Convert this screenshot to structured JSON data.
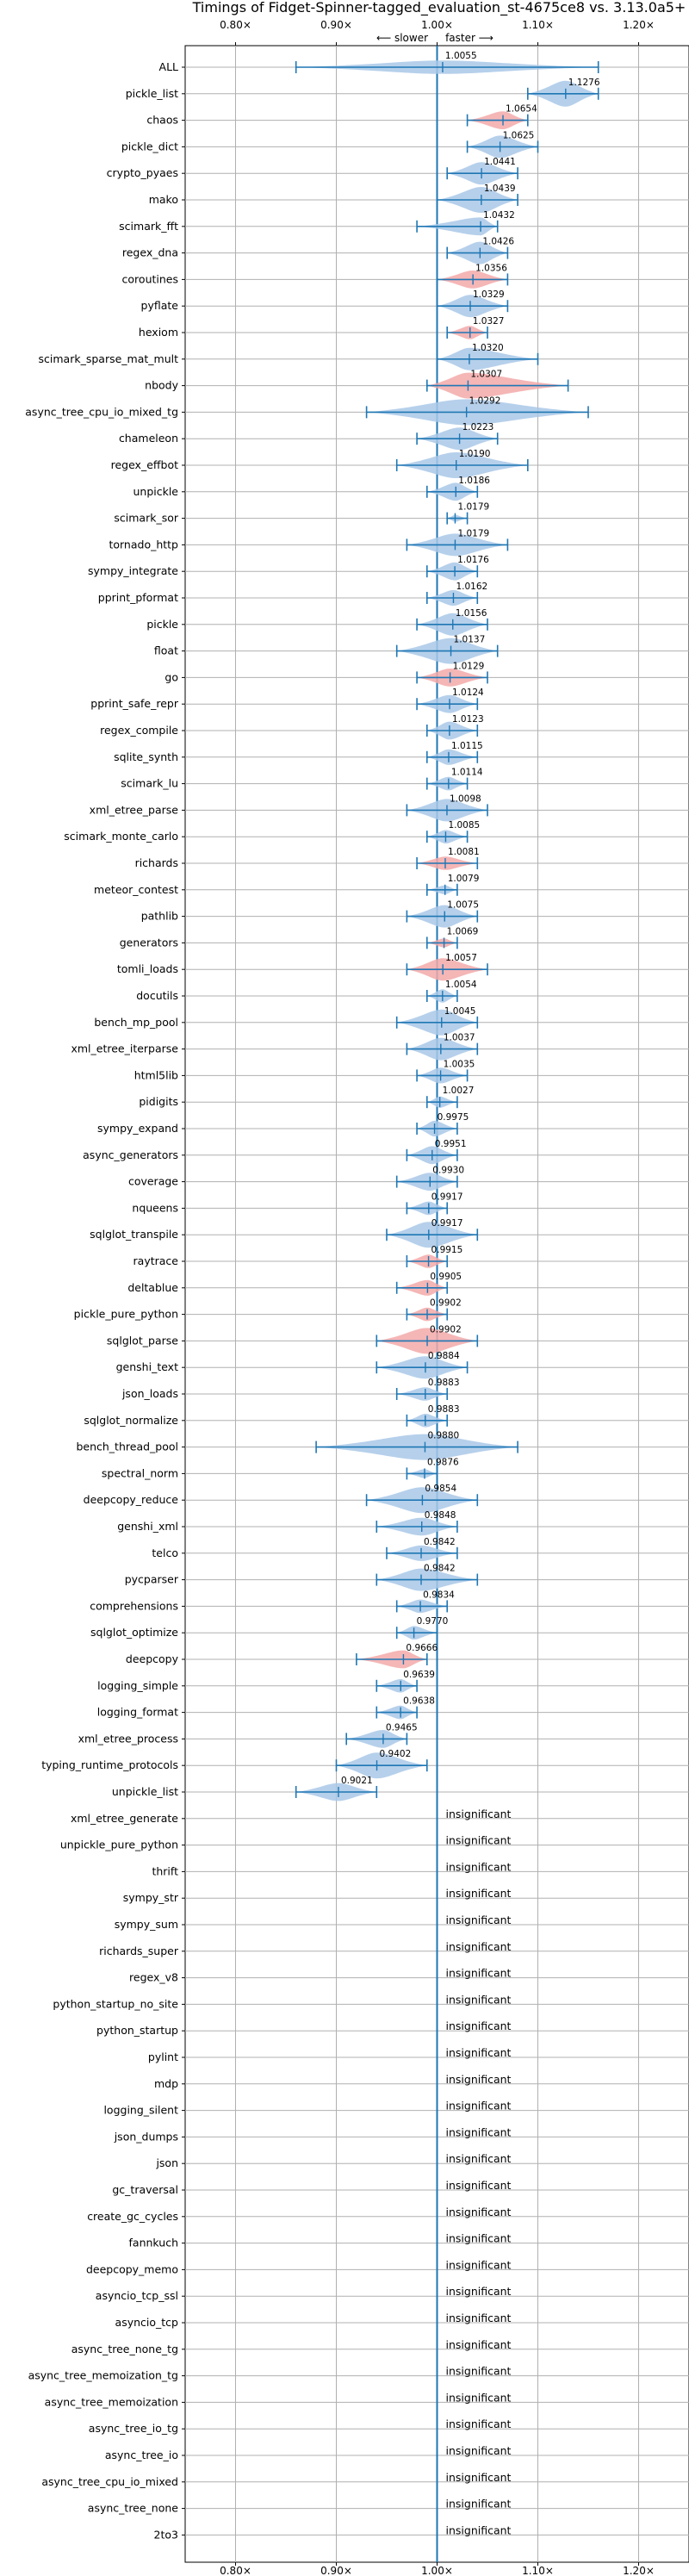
{
  "chart_data": {
    "type": "violin",
    "title": "Timings of Fidget-Spinner-tagged_evaluation_st-4675ce8 vs. 3.13.0a5+",
    "direction_hint": {
      "slower": "⟵ slower",
      "faster": "faster ⟶"
    },
    "xlim": [
      0.75,
      1.25
    ],
    "x_ticks": [
      0.8,
      0.9,
      1.0,
      1.1,
      1.2
    ],
    "x_tick_labels": [
      "0.80×",
      "0.90×",
      "1.00×",
      "1.10×",
      "1.20×"
    ],
    "grid": true,
    "insignificant_label": "insignificant",
    "colors": {
      "normal": "#a9c8e8",
      "highlight": "#f3a9a9",
      "line": "#1f77b4",
      "grid": "#b0b0b0"
    },
    "benchmarks": [
      {
        "name": "ALL",
        "value": 1.0055,
        "label": "1.0055",
        "low": 0.86,
        "high": 1.16,
        "width": 0.03,
        "hi": false
      },
      {
        "name": "pickle_list",
        "value": 1.1276,
        "label": "1.1276",
        "low": 1.09,
        "high": 1.16,
        "width": 0.06,
        "hi": false
      },
      {
        "name": "chaos",
        "value": 1.0654,
        "label": "1.0654",
        "low": 1.03,
        "high": 1.09,
        "width": 0.04,
        "hi": true
      },
      {
        "name": "pickle_dict",
        "value": 1.0625,
        "label": "1.0625",
        "low": 1.03,
        "high": 1.1,
        "width": 0.05,
        "hi": false
      },
      {
        "name": "crypto_pyaes",
        "value": 1.0441,
        "label": "1.0441",
        "low": 1.01,
        "high": 1.08,
        "width": 0.05,
        "hi": false
      },
      {
        "name": "mako",
        "value": 1.0439,
        "label": "1.0439",
        "low": 1.0,
        "high": 1.08,
        "width": 0.06,
        "hi": false
      },
      {
        "name": "scimark_fft",
        "value": 1.0432,
        "label": "1.0432",
        "low": 0.98,
        "high": 1.06,
        "width": 0.04,
        "hi": false
      },
      {
        "name": "regex_dna",
        "value": 1.0426,
        "label": "1.0426",
        "low": 1.01,
        "high": 1.07,
        "width": 0.05,
        "hi": false
      },
      {
        "name": "coroutines",
        "value": 1.0356,
        "label": "1.0356",
        "low": 1.0,
        "high": 1.07,
        "width": 0.04,
        "hi": true
      },
      {
        "name": "pyflate",
        "value": 1.0329,
        "label": "1.0329",
        "low": 1.0,
        "high": 1.07,
        "width": 0.05,
        "hi": false
      },
      {
        "name": "hexiom",
        "value": 1.0327,
        "label": "1.0327",
        "low": 1.01,
        "high": 1.05,
        "width": 0.03,
        "hi": true
      },
      {
        "name": "scimark_sparse_mat_mult",
        "value": 1.032,
        "label": "1.0320",
        "low": 1.0,
        "high": 1.1,
        "width": 0.05,
        "hi": false
      },
      {
        "name": "nbody",
        "value": 1.0307,
        "label": "1.0307",
        "low": 0.99,
        "high": 1.13,
        "width": 0.06,
        "hi": true
      },
      {
        "name": "async_tree_cpu_io_mixed_tg",
        "value": 1.0292,
        "label": "1.0292",
        "low": 0.93,
        "high": 1.15,
        "width": 0.12,
        "hi": false
      },
      {
        "name": "chameleon",
        "value": 1.0223,
        "label": "1.0223",
        "low": 0.98,
        "high": 1.06,
        "width": 0.05,
        "hi": false
      },
      {
        "name": "regex_effbot",
        "value": 1.019,
        "label": "1.0190",
        "low": 0.96,
        "high": 1.09,
        "width": 0.06,
        "hi": false
      },
      {
        "name": "unpickle",
        "value": 1.0186,
        "label": "1.0186",
        "low": 0.99,
        "high": 1.04,
        "width": 0.04,
        "hi": false
      },
      {
        "name": "scimark_sor",
        "value": 1.0179,
        "label": "1.0179",
        "low": 1.01,
        "high": 1.03,
        "width": 0.015,
        "hi": false
      },
      {
        "name": "tornado_http",
        "value": 1.0179,
        "label": "1.0179",
        "low": 0.97,
        "high": 1.07,
        "width": 0.05,
        "hi": false
      },
      {
        "name": "sympy_integrate",
        "value": 1.0176,
        "label": "1.0176",
        "low": 0.99,
        "high": 1.04,
        "width": 0.04,
        "hi": false
      },
      {
        "name": "pprint_pformat",
        "value": 1.0162,
        "label": "1.0162",
        "low": 0.99,
        "high": 1.04,
        "width": 0.035,
        "hi": false
      },
      {
        "name": "pickle",
        "value": 1.0156,
        "label": "1.0156",
        "low": 0.98,
        "high": 1.05,
        "width": 0.05,
        "hi": false
      },
      {
        "name": "float",
        "value": 1.0137,
        "label": "1.0137",
        "low": 0.96,
        "high": 1.06,
        "width": 0.07,
        "hi": false
      },
      {
        "name": "go",
        "value": 1.0129,
        "label": "1.0129",
        "low": 0.98,
        "high": 1.05,
        "width": 0.04,
        "hi": true
      },
      {
        "name": "pprint_safe_repr",
        "value": 1.0124,
        "label": "1.0124",
        "low": 0.98,
        "high": 1.04,
        "width": 0.04,
        "hi": false
      },
      {
        "name": "regex_compile",
        "value": 1.0123,
        "label": "1.0123",
        "low": 0.99,
        "high": 1.04,
        "width": 0.04,
        "hi": false
      },
      {
        "name": "sqlite_synth",
        "value": 1.0115,
        "label": "1.0115",
        "low": 0.99,
        "high": 1.04,
        "width": 0.035,
        "hi": false
      },
      {
        "name": "scimark_lu",
        "value": 1.0114,
        "label": "1.0114",
        "low": 0.99,
        "high": 1.03,
        "width": 0.03,
        "hi": false
      },
      {
        "name": "xml_etree_parse",
        "value": 1.0098,
        "label": "1.0098",
        "low": 0.97,
        "high": 1.05,
        "width": 0.05,
        "hi": false
      },
      {
        "name": "scimark_monte_carlo",
        "value": 1.0085,
        "label": "1.0085",
        "low": 0.99,
        "high": 1.03,
        "width": 0.03,
        "hi": false
      },
      {
        "name": "richards",
        "value": 1.0081,
        "label": "1.0081",
        "low": 0.98,
        "high": 1.04,
        "width": 0.03,
        "hi": true
      },
      {
        "name": "meteor_contest",
        "value": 1.0079,
        "label": "1.0079",
        "low": 0.99,
        "high": 1.02,
        "width": 0.02,
        "hi": false
      },
      {
        "name": "pathlib",
        "value": 1.0075,
        "label": "1.0075",
        "low": 0.97,
        "high": 1.04,
        "width": 0.05,
        "hi": false
      },
      {
        "name": "generators",
        "value": 1.0069,
        "label": "1.0069",
        "low": 0.99,
        "high": 1.02,
        "width": 0.02,
        "hi": true
      },
      {
        "name": "tomli_loads",
        "value": 1.0057,
        "label": "1.0057",
        "low": 0.97,
        "high": 1.05,
        "width": 0.05,
        "hi": true
      },
      {
        "name": "docutils",
        "value": 1.0054,
        "label": "1.0054",
        "low": 0.99,
        "high": 1.02,
        "width": 0.03,
        "hi": false
      },
      {
        "name": "bench_mp_pool",
        "value": 1.0045,
        "label": "1.0045",
        "low": 0.96,
        "high": 1.04,
        "width": 0.06,
        "hi": false
      },
      {
        "name": "xml_etree_iterparse",
        "value": 1.0037,
        "label": "1.0037",
        "low": 0.97,
        "high": 1.04,
        "width": 0.05,
        "hi": false
      },
      {
        "name": "html5lib",
        "value": 1.0035,
        "label": "1.0035",
        "low": 0.98,
        "high": 1.03,
        "width": 0.035,
        "hi": false
      },
      {
        "name": "pidigits",
        "value": 1.0027,
        "label": "1.0027",
        "low": 0.99,
        "high": 1.02,
        "width": 0.025,
        "hi": false
      },
      {
        "name": "sympy_expand",
        "value": 0.9975,
        "label": "0.9975",
        "low": 0.98,
        "high": 1.02,
        "width": 0.035,
        "hi": false
      },
      {
        "name": "async_generators",
        "value": 0.9951,
        "label": "0.9951",
        "low": 0.97,
        "high": 1.02,
        "width": 0.04,
        "hi": false
      },
      {
        "name": "coverage",
        "value": 0.993,
        "label": "0.9930",
        "low": 0.96,
        "high": 1.02,
        "width": 0.04,
        "hi": false
      },
      {
        "name": "nqueens",
        "value": 0.9917,
        "label": "0.9917",
        "low": 0.97,
        "high": 1.01,
        "width": 0.03,
        "hi": false
      },
      {
        "name": "sqlglot_transpile",
        "value": 0.9917,
        "label": "0.9917",
        "low": 0.95,
        "high": 1.04,
        "width": 0.06,
        "hi": false
      },
      {
        "name": "raytrace",
        "value": 0.9915,
        "label": "0.9915",
        "low": 0.97,
        "high": 1.01,
        "width": 0.03,
        "hi": true
      },
      {
        "name": "deltablue",
        "value": 0.9905,
        "label": "0.9905",
        "low": 0.96,
        "high": 1.01,
        "width": 0.035,
        "hi": true
      },
      {
        "name": "pickle_pure_python",
        "value": 0.9902,
        "label": "0.9902",
        "low": 0.97,
        "high": 1.01,
        "width": 0.03,
        "hi": true
      },
      {
        "name": "sqlglot_parse",
        "value": 0.9902,
        "label": "0.9902",
        "low": 0.94,
        "high": 1.04,
        "width": 0.06,
        "hi": true
      },
      {
        "name": "genshi_text",
        "value": 0.9884,
        "label": "0.9884",
        "low": 0.94,
        "high": 1.03,
        "width": 0.05,
        "hi": false
      },
      {
        "name": "json_loads",
        "value": 0.9883,
        "label": "0.9883",
        "low": 0.96,
        "high": 1.01,
        "width": 0.03,
        "hi": false
      },
      {
        "name": "sqlglot_normalize",
        "value": 0.9883,
        "label": "0.9883",
        "low": 0.97,
        "high": 1.01,
        "width": 0.03,
        "hi": false
      },
      {
        "name": "bench_thread_pool",
        "value": 0.988,
        "label": "0.9880",
        "low": 0.88,
        "high": 1.08,
        "width": 0.08,
        "hi": false
      },
      {
        "name": "spectral_norm",
        "value": 0.9876,
        "label": "0.9876",
        "low": 0.97,
        "high": 1.0,
        "width": 0.02,
        "hi": false
      },
      {
        "name": "deepcopy_reduce",
        "value": 0.9854,
        "label": "0.9854",
        "low": 0.93,
        "high": 1.04,
        "width": 0.06,
        "hi": false
      },
      {
        "name": "genshi_xml",
        "value": 0.9848,
        "label": "0.9848",
        "low": 0.94,
        "high": 1.02,
        "width": 0.04,
        "hi": false
      },
      {
        "name": "telco",
        "value": 0.9842,
        "label": "0.9842",
        "low": 0.95,
        "high": 1.02,
        "width": 0.035,
        "hi": false
      },
      {
        "name": "pycparser",
        "value": 0.9842,
        "label": "0.9842",
        "low": 0.94,
        "high": 1.04,
        "width": 0.05,
        "hi": false
      },
      {
        "name": "comprehensions",
        "value": 0.9834,
        "label": "0.9834",
        "low": 0.96,
        "high": 1.01,
        "width": 0.03,
        "hi": false
      },
      {
        "name": "sqlglot_optimize",
        "value": 0.977,
        "label": "0.9770",
        "low": 0.96,
        "high": 1.0,
        "width": 0.03,
        "hi": false
      },
      {
        "name": "deepcopy",
        "value": 0.9666,
        "label": "0.9666",
        "low": 0.92,
        "high": 0.99,
        "width": 0.04,
        "hi": true
      },
      {
        "name": "logging_simple",
        "value": 0.9639,
        "label": "0.9639",
        "low": 0.94,
        "high": 0.98,
        "width": 0.03,
        "hi": false
      },
      {
        "name": "logging_format",
        "value": 0.9638,
        "label": "0.9638",
        "low": 0.94,
        "high": 0.98,
        "width": 0.03,
        "hi": false
      },
      {
        "name": "xml_etree_process",
        "value": 0.9465,
        "label": "0.9465",
        "low": 0.91,
        "high": 0.97,
        "width": 0.04,
        "hi": false
      },
      {
        "name": "typing_runtime_protocols",
        "value": 0.9402,
        "label": "0.9402",
        "low": 0.9,
        "high": 0.99,
        "width": 0.06,
        "hi": false
      },
      {
        "name": "unpickle_list",
        "value": 0.9021,
        "label": "0.9021",
        "low": 0.86,
        "high": 0.94,
        "width": 0.04,
        "hi": false
      }
    ],
    "insignificant": [
      "xml_etree_generate",
      "unpickle_pure_python",
      "thrift",
      "sympy_str",
      "sympy_sum",
      "richards_super",
      "regex_v8",
      "python_startup_no_site",
      "python_startup",
      "pylint",
      "mdp",
      "logging_silent",
      "json_dumps",
      "json",
      "gc_traversal",
      "create_gc_cycles",
      "fannkuch",
      "deepcopy_memo",
      "asyncio_tcp_ssl",
      "asyncio_tcp",
      "async_tree_none_tg",
      "async_tree_memoization_tg",
      "async_tree_memoization",
      "async_tree_io_tg",
      "async_tree_io",
      "async_tree_cpu_io_mixed",
      "async_tree_none",
      "2to3"
    ]
  }
}
